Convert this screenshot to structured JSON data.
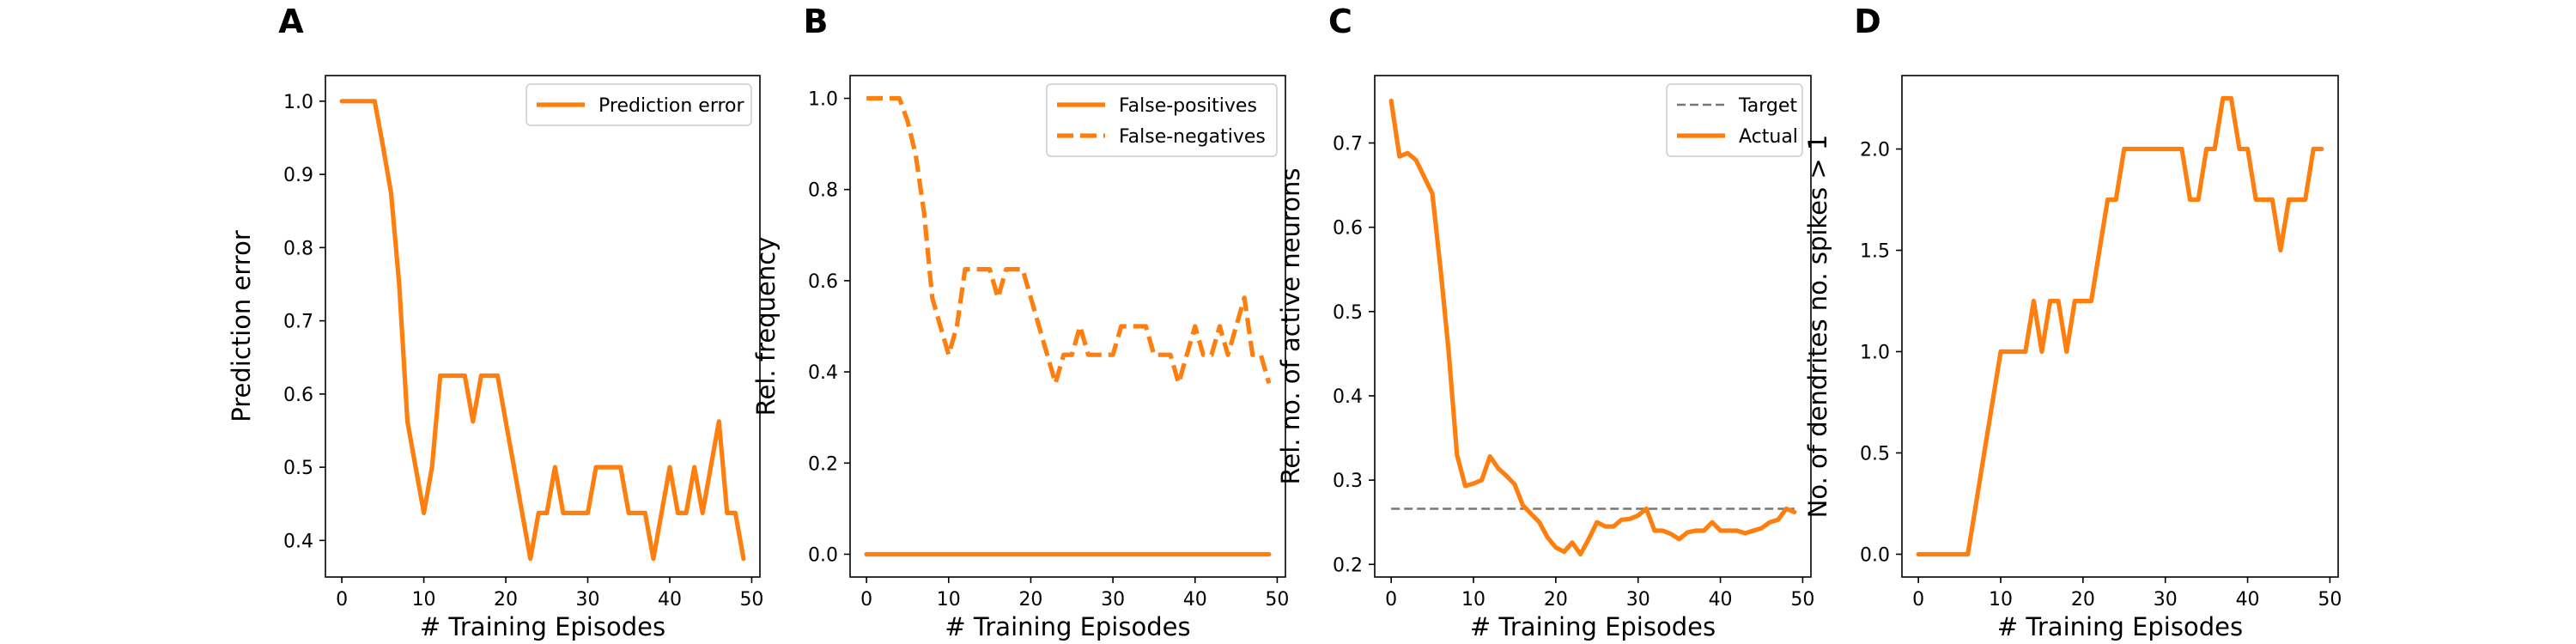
{
  "chart_data": [
    {
      "type": "line",
      "panel_label": "A",
      "xlabel": "# Training Episodes",
      "ylabel": "Prediction error",
      "xlim": [
        -2,
        51
      ],
      "ylim": [
        0.35,
        1.035
      ],
      "xticks": [
        0,
        10,
        20,
        30,
        40,
        50
      ],
      "yticks": [
        0.4,
        0.5,
        0.6,
        0.7,
        0.8,
        0.9,
        1.0
      ],
      "ytick_labels": [
        "0.4",
        "0.5",
        "0.6",
        "0.7",
        "0.8",
        "0.9",
        "1.0"
      ],
      "grid": false,
      "legend": "top-right",
      "series": [
        {
          "name": "Prediction error",
          "color": "#ff7f0e",
          "dash": "solid",
          "x": [
            0,
            1,
            2,
            3,
            4,
            5,
            6,
            7,
            8,
            9,
            10,
            11,
            12,
            13,
            14,
            15,
            16,
            17,
            18,
            19,
            20,
            21,
            22,
            23,
            24,
            25,
            26,
            27,
            28,
            29,
            30,
            31,
            32,
            33,
            34,
            35,
            36,
            37,
            38,
            39,
            40,
            41,
            42,
            43,
            44,
            45,
            46,
            47,
            48,
            49
          ],
          "y": [
            1.0,
            1.0,
            1.0,
            1.0,
            1.0,
            0.94,
            0.875,
            0.75,
            0.5625,
            0.5,
            0.4375,
            0.5,
            0.625,
            0.625,
            0.625,
            0.625,
            0.5625,
            0.625,
            0.625,
            0.625,
            0.5625,
            0.5,
            0.4375,
            0.375,
            0.4375,
            0.4375,
            0.5,
            0.4375,
            0.4375,
            0.4375,
            0.4375,
            0.5,
            0.5,
            0.5,
            0.5,
            0.4375,
            0.4375,
            0.4375,
            0.375,
            0.4375,
            0.5,
            0.4375,
            0.4375,
            0.5,
            0.4375,
            0.5,
            0.5625,
            0.4375,
            0.4375,
            0.375
          ]
        }
      ]
    },
    {
      "type": "line",
      "panel_label": "B",
      "xlabel": "# Training Episodes",
      "ylabel": "Rel. frequency",
      "xlim": [
        -2,
        51
      ],
      "ylim": [
        -0.05,
        1.05
      ],
      "xticks": [
        0,
        10,
        20,
        30,
        40,
        50
      ],
      "yticks": [
        0.0,
        0.2,
        0.4,
        0.6,
        0.8,
        1.0
      ],
      "ytick_labels": [
        "0.0",
        "0.2",
        "0.4",
        "0.6",
        "0.8",
        "1.0"
      ],
      "grid": false,
      "legend": "top-right",
      "series": [
        {
          "name": "False-positives",
          "color": "#ff7f0e",
          "dash": "solid",
          "x": [
            0,
            49
          ],
          "y": [
            0.0,
            0.0
          ]
        },
        {
          "name": "False-negatives",
          "color": "#ff7f0e",
          "dash": "dashed",
          "x": [
            0,
            1,
            2,
            3,
            4,
            5,
            6,
            7,
            8,
            9,
            10,
            11,
            12,
            13,
            14,
            15,
            16,
            17,
            18,
            19,
            20,
            21,
            22,
            23,
            24,
            25,
            26,
            27,
            28,
            29,
            30,
            31,
            32,
            33,
            34,
            35,
            36,
            37,
            38,
            39,
            40,
            41,
            42,
            43,
            44,
            45,
            46,
            47,
            48,
            49
          ],
          "y": [
            1.0,
            1.0,
            1.0,
            1.0,
            1.0,
            0.95,
            0.875,
            0.75,
            0.5625,
            0.5,
            0.4375,
            0.5,
            0.625,
            0.625,
            0.625,
            0.625,
            0.5625,
            0.625,
            0.625,
            0.625,
            0.5625,
            0.5,
            0.4375,
            0.375,
            0.4375,
            0.4375,
            0.5,
            0.4375,
            0.4375,
            0.4375,
            0.4375,
            0.5,
            0.5,
            0.5,
            0.5,
            0.4375,
            0.4375,
            0.4375,
            0.375,
            0.4375,
            0.5,
            0.4375,
            0.4375,
            0.5,
            0.4375,
            0.5,
            0.5625,
            0.4375,
            0.4375,
            0.375
          ]
        }
      ]
    },
    {
      "type": "line",
      "panel_label": "C",
      "xlabel": "# Training Episodes",
      "ylabel": "Rel. no. of active neurons",
      "xlim": [
        -2,
        51
      ],
      "ylim": [
        0.185,
        0.78
      ],
      "xticks": [
        0,
        10,
        20,
        30,
        40,
        50
      ],
      "yticks": [
        0.2,
        0.3,
        0.4,
        0.5,
        0.6,
        0.7
      ],
      "ytick_labels": [
        "0.2",
        "0.3",
        "0.4",
        "0.5",
        "0.6",
        "0.7"
      ],
      "grid": false,
      "legend": "top-right",
      "series": [
        {
          "name": "Target",
          "color": "#777777",
          "dash": "dashed",
          "x": [
            0,
            49
          ],
          "y": [
            0.266,
            0.266
          ]
        },
        {
          "name": "Actual",
          "color": "#ff7f0e",
          "dash": "solid",
          "x": [
            0,
            1,
            2,
            3,
            4,
            5,
            6,
            7,
            8,
            9,
            10,
            11,
            12,
            13,
            14,
            15,
            16,
            17,
            18,
            19,
            20,
            21,
            22,
            23,
            24,
            25,
            26,
            27,
            28,
            29,
            30,
            31,
            32,
            33,
            34,
            35,
            36,
            37,
            38,
            39,
            40,
            41,
            42,
            43,
            44,
            45,
            46,
            47,
            48,
            49
          ],
          "y": [
            0.75,
            0.684,
            0.688,
            0.68,
            0.66,
            0.64,
            0.55,
            0.45,
            0.33,
            0.293,
            0.296,
            0.3,
            0.328,
            0.314,
            0.305,
            0.295,
            0.27,
            0.26,
            0.25,
            0.232,
            0.22,
            0.215,
            0.226,
            0.212,
            0.23,
            0.25,
            0.245,
            0.245,
            0.253,
            0.254,
            0.258,
            0.266,
            0.24,
            0.24,
            0.236,
            0.23,
            0.238,
            0.24,
            0.24,
            0.25,
            0.24,
            0.24,
            0.24,
            0.237,
            0.24,
            0.243,
            0.25,
            0.253,
            0.266,
            0.262
          ]
        }
      ]
    },
    {
      "type": "line",
      "panel_label": "D",
      "xlabel": "# Training Episodes",
      "ylabel": "No. of dendrites no. spikes > 1",
      "xlim": [
        -2,
        51
      ],
      "ylim": [
        -0.1125,
        2.3625
      ],
      "xticks": [
        0,
        10,
        20,
        30,
        40,
        50
      ],
      "yticks": [
        0.0,
        0.5,
        1.0,
        1.5,
        2.0
      ],
      "ytick_labels": [
        "0.0",
        "0.5",
        "1.0",
        "1.5",
        "2.0"
      ],
      "grid": false,
      "legend": "none",
      "series": [
        {
          "color": "#ff7f0e",
          "dash": "solid",
          "x": [
            0,
            1,
            2,
            3,
            4,
            5,
            6,
            7,
            8,
            9,
            10,
            11,
            12,
            13,
            14,
            15,
            16,
            17,
            18,
            19,
            20,
            21,
            22,
            23,
            24,
            25,
            26,
            27,
            28,
            29,
            30,
            31,
            32,
            33,
            34,
            35,
            36,
            37,
            38,
            39,
            40,
            41,
            42,
            43,
            44,
            45,
            46,
            47,
            48,
            49
          ],
          "y": [
            0,
            0,
            0,
            0,
            0,
            0,
            0,
            0.25,
            0.5,
            0.75,
            1.0,
            1.0,
            1.0,
            1.0,
            1.25,
            1.0,
            1.25,
            1.25,
            1.0,
            1.25,
            1.25,
            1.25,
            1.5,
            1.75,
            1.75,
            2.0,
            2.0,
            2.0,
            2.0,
            2.0,
            2.0,
            2.0,
            2.0,
            1.75,
            1.75,
            2.0,
            2.0,
            2.25,
            2.25,
            2.0,
            2.0,
            1.75,
            1.75,
            1.75,
            1.5,
            1.75,
            1.75,
            1.75,
            2.0,
            2.0
          ]
        }
      ]
    }
  ]
}
